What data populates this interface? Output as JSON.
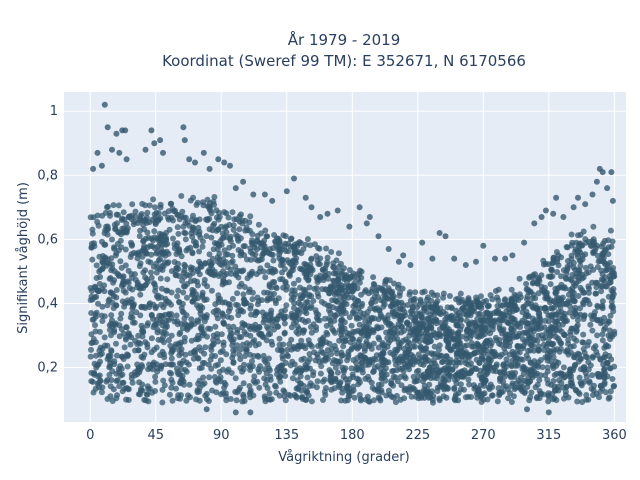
{
  "chart_data": {
    "type": "scatter",
    "title": "År 1979 - 2019",
    "subtitle": "Koordinat (Sweref 99 TM): E 352671, N 6170566",
    "xlabel": "Vågriktning (grader)",
    "ylabel": "Signifikant våghöjd (m)",
    "xlim": [
      -18,
      368
    ],
    "ylim": [
      0.03,
      1.06
    ],
    "xticks": [
      0,
      45,
      90,
      135,
      180,
      225,
      270,
      315,
      360
    ],
    "xtick_labels": [
      "0",
      "45",
      "90",
      "135",
      "180",
      "225",
      "270",
      "315",
      "360"
    ],
    "yticks": [
      0.2,
      0.4,
      0.6,
      0.8,
      1
    ],
    "ytick_labels": [
      "0,2",
      "0,4",
      "0,6",
      "0,8",
      "1"
    ],
    "grid": true,
    "marker_color": "#34586e",
    "plot_background": "#e5ecf6",
    "dense_band": {
      "x": [
        0,
        360
      ],
      "y_min": 0.09,
      "y_max_profile": [
        [
          0,
          0.66
        ],
        [
          15,
          0.68
        ],
        [
          30,
          0.69
        ],
        [
          45,
          0.7
        ],
        [
          60,
          0.72
        ],
        [
          75,
          0.72
        ],
        [
          90,
          0.7
        ],
        [
          105,
          0.66
        ],
        [
          120,
          0.62
        ],
        [
          135,
          0.6
        ],
        [
          150,
          0.58
        ],
        [
          165,
          0.54
        ],
        [
          180,
          0.5
        ],
        [
          195,
          0.47
        ],
        [
          210,
          0.44
        ],
        [
          225,
          0.42
        ],
        [
          240,
          0.41
        ],
        [
          255,
          0.41
        ],
        [
          270,
          0.4
        ],
        [
          285,
          0.42
        ],
        [
          300,
          0.46
        ],
        [
          315,
          0.52
        ],
        [
          330,
          0.58
        ],
        [
          345,
          0.62
        ],
        [
          360,
          0.6
        ]
      ]
    },
    "outliers": [
      [
        10,
        1.02
      ],
      [
        12,
        0.95
      ],
      [
        18,
        0.93
      ],
      [
        22,
        0.94
      ],
      [
        24,
        0.94
      ],
      [
        15,
        0.88
      ],
      [
        20,
        0.87
      ],
      [
        5,
        0.87
      ],
      [
        2,
        0.82
      ],
      [
        8,
        0.83
      ],
      [
        25,
        0.85
      ],
      [
        38,
        0.88
      ],
      [
        42,
        0.94
      ],
      [
        44,
        0.9
      ],
      [
        48,
        0.91
      ],
      [
        50,
        0.87
      ],
      [
        64,
        0.95
      ],
      [
        65,
        0.91
      ],
      [
        68,
        0.85
      ],
      [
        72,
        0.84
      ],
      [
        78,
        0.87
      ],
      [
        82,
        0.82
      ],
      [
        88,
        0.85
      ],
      [
        92,
        0.84
      ],
      [
        96,
        0.83
      ],
      [
        100,
        0.76
      ],
      [
        105,
        0.78
      ],
      [
        112,
        0.74
      ],
      [
        120,
        0.74
      ],
      [
        125,
        0.72
      ],
      [
        135,
        0.75
      ],
      [
        140,
        0.79
      ],
      [
        148,
        0.73
      ],
      [
        152,
        0.7
      ],
      [
        158,
        0.67
      ],
      [
        163,
        0.68
      ],
      [
        170,
        0.69
      ],
      [
        178,
        0.64
      ],
      [
        185,
        0.7
      ],
      [
        190,
        0.65
      ],
      [
        192,
        0.67
      ],
      [
        198,
        0.61
      ],
      [
        205,
        0.57
      ],
      [
        212,
        0.53
      ],
      [
        215,
        0.55
      ],
      [
        220,
        0.52
      ],
      [
        228,
        0.59
      ],
      [
        235,
        0.54
      ],
      [
        240,
        0.62
      ],
      [
        244,
        0.61
      ],
      [
        250,
        0.54
      ],
      [
        258,
        0.52
      ],
      [
        265,
        0.53
      ],
      [
        270,
        0.58
      ],
      [
        278,
        0.54
      ],
      [
        285,
        0.54
      ],
      [
        290,
        0.55
      ],
      [
        298,
        0.59
      ],
      [
        305,
        0.65
      ],
      [
        310,
        0.67
      ],
      [
        313,
        0.69
      ],
      [
        318,
        0.68
      ],
      [
        320,
        0.73
      ],
      [
        325,
        0.67
      ],
      [
        332,
        0.7
      ],
      [
        335,
        0.73
      ],
      [
        340,
        0.71
      ],
      [
        345,
        0.74
      ],
      [
        348,
        0.78
      ],
      [
        350,
        0.82
      ],
      [
        352,
        0.81
      ],
      [
        355,
        0.76
      ],
      [
        358,
        0.81
      ],
      [
        359,
        0.72
      ],
      [
        315,
        0.06
      ],
      [
        110,
        0.06
      ],
      [
        100,
        0.06
      ],
      [
        80,
        0.07
      ],
      [
        300,
        0.07
      ]
    ]
  }
}
